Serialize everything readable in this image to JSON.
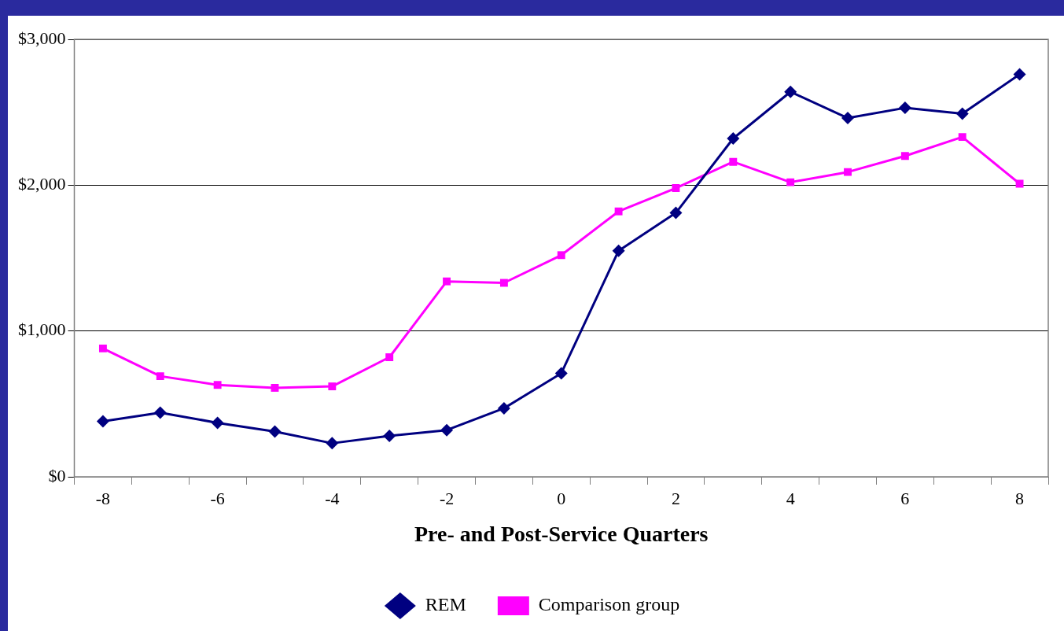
{
  "chart_data": {
    "type": "line",
    "xlabel": "Pre- and Post-Service Quarters",
    "categories": [
      "-8",
      null,
      "-6",
      null,
      "-4",
      null,
      "-2",
      null,
      "0",
      null,
      "2",
      null,
      "4",
      null,
      "6",
      null,
      "8"
    ],
    "series": [
      {
        "name": "REM",
        "color": "#000080",
        "marker": "diamond",
        "values": [
          380,
          440,
          370,
          310,
          230,
          280,
          320,
          470,
          710,
          1550,
          1810,
          2320,
          2640,
          2460,
          2530,
          2490,
          2760
        ]
      },
      {
        "name": "Comparison group",
        "color": "#ff00ff",
        "marker": "square",
        "values": [
          880,
          690,
          630,
          610,
          620,
          820,
          1340,
          1330,
          1520,
          1820,
          1980,
          2160,
          2020,
          2090,
          2200,
          2330,
          2010
        ]
      }
    ],
    "ylim": [
      0,
      3000
    ],
    "yticks": [
      {
        "value": 0,
        "label": "$0"
      },
      {
        "value": 1000,
        "label": "$1,000"
      },
      {
        "value": 2000,
        "label": "$2,000"
      },
      {
        "value": 3000,
        "label": "$3,000"
      }
    ],
    "grid": "y",
    "legend": "bottom",
    "line_style": "solid"
  }
}
